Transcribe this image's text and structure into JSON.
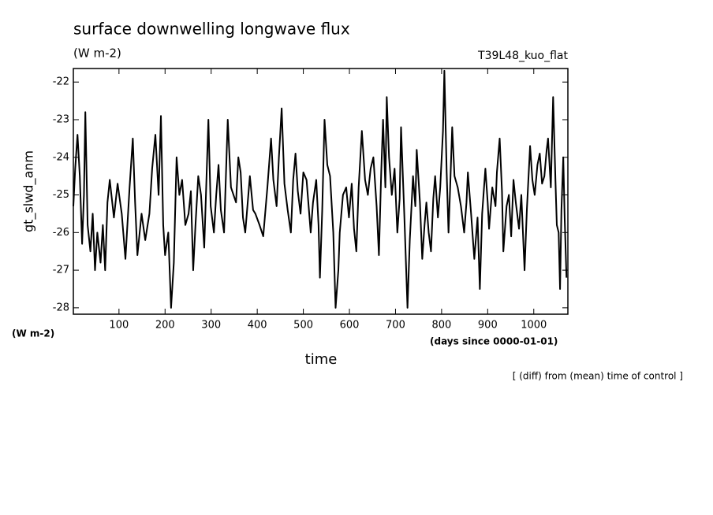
{
  "chart_data": {
    "type": "line",
    "title": "surface downwelling longwave flux",
    "subtitle": "(W m-2)",
    "annotation": "T39L48_kuo_flat",
    "y_label": "gt_slwd_anm",
    "y_units": "(W m-2)",
    "x_units": "(days since 0000-01-01)",
    "x_label": "time",
    "footnote": "[ (diff) from (mean) time of control ]",
    "color": "#000000",
    "xlim": [
      1,
      1074
    ],
    "ylim": [
      -28.17,
      -21.64
    ],
    "xticks": [
      100,
      200,
      300,
      400,
      500,
      600,
      700,
      800,
      900,
      1000
    ],
    "yticks": [
      -28,
      -27,
      -26,
      -25,
      -24,
      -23,
      -22
    ],
    "x": [
      1,
      5,
      10,
      15,
      20,
      24,
      27,
      32,
      38,
      43,
      48,
      53,
      60,
      65,
      70,
      75,
      80,
      89,
      97,
      106,
      114,
      123,
      130,
      135,
      140,
      149,
      157,
      166,
      172,
      179,
      186,
      191,
      196,
      200,
      207,
      213,
      219,
      225,
      231,
      237,
      244,
      251,
      256,
      261,
      266,
      272,
      278,
      285,
      294,
      299,
      306,
      311,
      316,
      321,
      328,
      336,
      343,
      354,
      359,
      364,
      369,
      374,
      384,
      391,
      396,
      405,
      413,
      422,
      430,
      435,
      442,
      447,
      453,
      459,
      466,
      473,
      478,
      483,
      488,
      494,
      500,
      507,
      516,
      521,
      528,
      533,
      536,
      541,
      546,
      552,
      558,
      565,
      570,
      576,
      579,
      586,
      593,
      599,
      605,
      610,
      615,
      620,
      627,
      634,
      640,
      646,
      652,
      659,
      664,
      669,
      673,
      678,
      681,
      686,
      692,
      698,
      704,
      709,
      712,
      719,
      726,
      731,
      738,
      743,
      746,
      753,
      758,
      763,
      767,
      772,
      777,
      782,
      786,
      792,
      797,
      803,
      806,
      811,
      815,
      818,
      823,
      828,
      835,
      842,
      849,
      854,
      857,
      864,
      871,
      878,
      883,
      888,
      895,
      900,
      903,
      910,
      917,
      920,
      926,
      931,
      934,
      941,
      946,
      951,
      956,
      961,
      968,
      973,
      980,
      985,
      992,
      997,
      1002,
      1008,
      1013,
      1018,
      1023,
      1028,
      1031,
      1037,
      1042,
      1047,
      1050,
      1054,
      1057,
      1060,
      1064,
      1067,
      1071
    ],
    "values": [
      -25.3,
      -24.3,
      -23.4,
      -24.5,
      -26.3,
      -25.0,
      -22.8,
      -25.8,
      -26.5,
      -25.5,
      -27.0,
      -26.0,
      -26.8,
      -25.8,
      -27.0,
      -25.2,
      -24.6,
      -25.6,
      -24.7,
      -25.5,
      -26.7,
      -24.8,
      -23.5,
      -25.2,
      -26.6,
      -25.5,
      -26.2,
      -25.5,
      -24.3,
      -23.4,
      -25.0,
      -22.9,
      -25.8,
      -26.6,
      -26.0,
      -28.0,
      -26.8,
      -24.0,
      -25.0,
      -24.6,
      -25.8,
      -25.5,
      -24.9,
      -27.0,
      -25.8,
      -24.5,
      -25.0,
      -26.4,
      -23.0,
      -25.3,
      -26.0,
      -25.0,
      -24.2,
      -25.4,
      -26.0,
      -23.0,
      -24.8,
      -25.2,
      -24.0,
      -24.4,
      -25.6,
      -26.0,
      -24.5,
      -25.4,
      -25.5,
      -25.8,
      -26.1,
      -24.8,
      -23.5,
      -24.6,
      -25.3,
      -24.0,
      -22.7,
      -24.7,
      -25.4,
      -26.0,
      -24.6,
      -23.9,
      -24.9,
      -25.5,
      -24.4,
      -24.6,
      -26.0,
      -25.2,
      -24.6,
      -25.8,
      -27.2,
      -25.4,
      -23.0,
      -24.2,
      -24.5,
      -26.0,
      -28.0,
      -27.0,
      -26.0,
      -25.0,
      -24.8,
      -25.6,
      -24.7,
      -25.9,
      -26.5,
      -24.8,
      -23.3,
      -24.6,
      -25.0,
      -24.3,
      -24.0,
      -25.3,
      -26.6,
      -24.4,
      -23.0,
      -24.8,
      -22.4,
      -24.0,
      -25.0,
      -24.3,
      -26.0,
      -25.1,
      -23.2,
      -25.5,
      -28.0,
      -26.2,
      -24.5,
      -25.3,
      -23.8,
      -25.2,
      -26.7,
      -25.8,
      -25.2,
      -26.0,
      -26.5,
      -25.1,
      -24.5,
      -25.6,
      -24.8,
      -23.3,
      -21.7,
      -24.4,
      -26.0,
      -25.0,
      -23.2,
      -24.5,
      -24.8,
      -25.3,
      -26.0,
      -25.2,
      -24.4,
      -25.5,
      -26.7,
      -25.6,
      -27.5,
      -25.5,
      -24.3,
      -25.2,
      -25.9,
      -24.8,
      -25.3,
      -24.4,
      -23.5,
      -24.9,
      -26.5,
      -25.3,
      -25.0,
      -26.1,
      -24.6,
      -25.2,
      -25.9,
      -25.0,
      -27.0,
      -25.4,
      -23.7,
      -24.6,
      -25.0,
      -24.2,
      -23.9,
      -24.7,
      -24.5,
      -23.8,
      -23.5,
      -24.8,
      -22.4,
      -24.6,
      -25.8,
      -26.0,
      -27.5,
      -25.4,
      -24.0,
      -25.6,
      -27.2
    ]
  }
}
